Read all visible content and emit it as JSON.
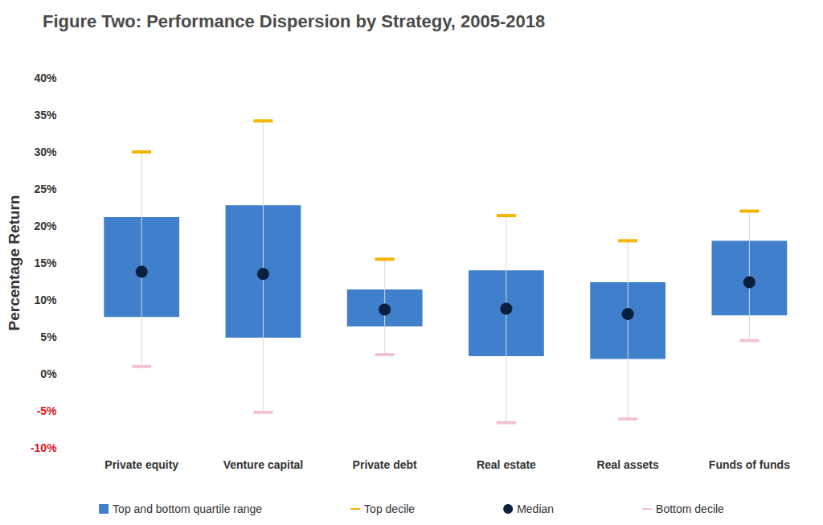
{
  "chart_data": {
    "type": "range_box",
    "title": "Figure Two: Performance Dispersion by Strategy, 2005-2018",
    "y_label": "Percentage Return",
    "categories": [
      "Private equity",
      "Venture capital",
      "Private debt",
      "Real estate",
      "Real assets",
      "Funds of funds"
    ],
    "series": [
      {
        "name": "Top and bottom quartile range",
        "type": "range",
        "color": "#3f7fcc",
        "low": [
          7.7,
          4.9,
          6.4,
          2.4,
          2.0,
          7.9
        ],
        "high": [
          21.2,
          22.8,
          11.4,
          14.0,
          12.4,
          18.0
        ]
      },
      {
        "name": "Top decile",
        "type": "marker",
        "marker": "dash",
        "color": "#f5b400",
        "values": [
          30.0,
          34.2,
          15.5,
          21.4,
          18.0,
          22.0
        ]
      },
      {
        "name": "Median",
        "type": "scatter",
        "marker": "circle",
        "color": "#0b1f3f",
        "values": [
          13.8,
          13.5,
          8.7,
          8.8,
          8.1,
          12.4
        ]
      },
      {
        "name": "Bottom decile",
        "type": "marker",
        "marker": "dash",
        "color": "#f2c4d0",
        "values": [
          1.0,
          -5.2,
          2.6,
          -6.6,
          -6.1,
          4.5
        ]
      }
    ],
    "ylim": [
      -10,
      40
    ],
    "yticks": [
      {
        "value": -10,
        "label": "-10%"
      },
      {
        "value": -5,
        "label": "-5%"
      },
      {
        "value": 0,
        "label": "0%"
      },
      {
        "value": 5,
        "label": "5%"
      },
      {
        "value": 10,
        "label": "10%"
      },
      {
        "value": 15,
        "label": "15%"
      },
      {
        "value": 20,
        "label": "20%"
      },
      {
        "value": 25,
        "label": "25%"
      },
      {
        "value": 30,
        "label": "30%"
      },
      {
        "value": 35,
        "label": "35%"
      },
      {
        "value": 40,
        "label": "40%"
      }
    ],
    "grid": false,
    "legend": "bottom"
  }
}
